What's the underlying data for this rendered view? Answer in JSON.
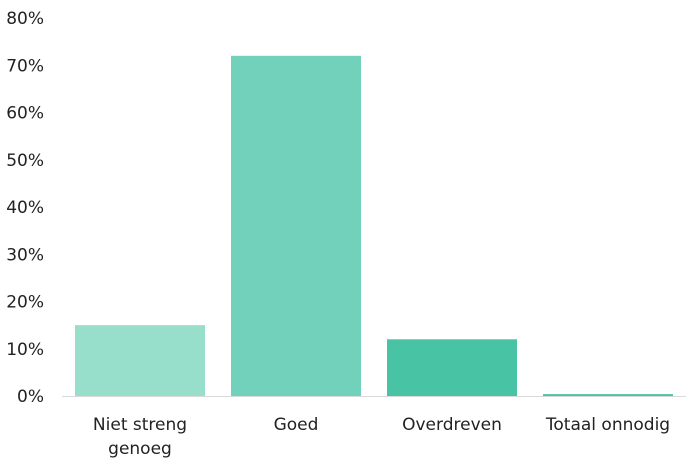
{
  "chart_data": {
    "type": "bar",
    "categories": [
      [
        "Niet streng",
        "genoeg"
      ],
      [
        "Goed"
      ],
      [
        "Overdreven"
      ],
      [
        "Totaal onnodig"
      ]
    ],
    "values": [
      15,
      72,
      12,
      0.4
    ],
    "colors": [
      "#98dfcb",
      "#72d1ba",
      "#48c4a4",
      "#48c4a4"
    ],
    "ylim": [
      0,
      80
    ],
    "yticks": [
      0,
      10,
      20,
      30,
      40,
      50,
      60,
      70,
      80
    ],
    "ytick_labels": [
      "0%",
      "10%",
      "20%",
      "30%",
      "40%",
      "50%",
      "60%",
      "70%",
      "80%"
    ],
    "grid": false,
    "axis_color": "#d9d9d9"
  }
}
